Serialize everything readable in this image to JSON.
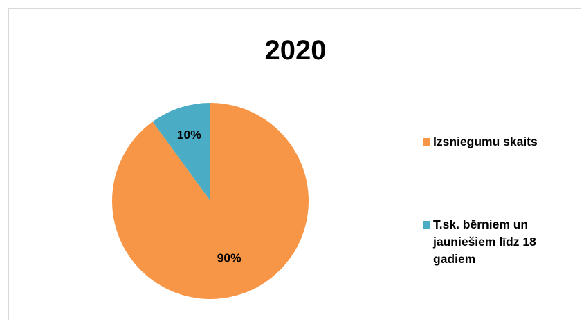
{
  "chart_data": {
    "type": "pie",
    "title": "2020",
    "slices": [
      {
        "name": "Izsniegumu skaits",
        "value": 90,
        "label": "90%",
        "color": "#f79646"
      },
      {
        "name": "T.sk. bērniem un jauniešiem līdz 18 gadiem",
        "value": 10,
        "label": "10%",
        "color": "#4bacc6"
      }
    ],
    "legend_position": "right"
  }
}
